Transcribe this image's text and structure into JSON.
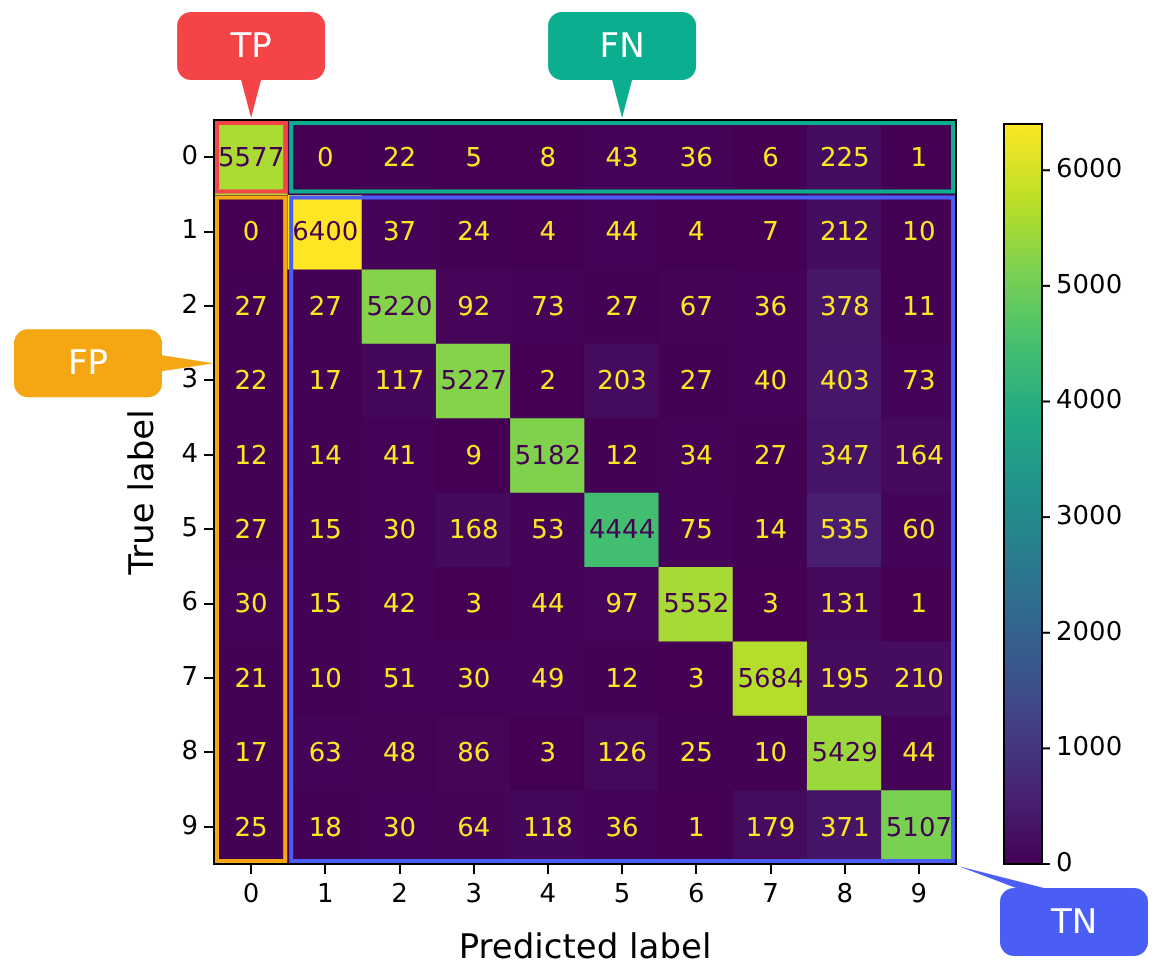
{
  "chart_data": {
    "type": "heatmap",
    "xlabel": "Predicted label",
    "ylabel": "True label",
    "categories": [
      "0",
      "1",
      "2",
      "3",
      "4",
      "5",
      "6",
      "7",
      "8",
      "9"
    ],
    "y_categories": [
      "0",
      "1",
      "2",
      "3",
      "4",
      "5",
      "6",
      "7",
      "8",
      "9"
    ],
    "cells": [
      [
        5577,
        0,
        22,
        5,
        8,
        43,
        36,
        6,
        225,
        1
      ],
      [
        0,
        6400,
        37,
        24,
        4,
        44,
        4,
        7,
        212,
        10
      ],
      [
        27,
        27,
        5220,
        92,
        73,
        27,
        67,
        36,
        378,
        11
      ],
      [
        22,
        17,
        117,
        5227,
        2,
        203,
        27,
        40,
        403,
        73
      ],
      [
        12,
        14,
        41,
        9,
        5182,
        12,
        34,
        27,
        347,
        164
      ],
      [
        27,
        15,
        30,
        168,
        53,
        4444,
        75,
        14,
        535,
        60
      ],
      [
        30,
        15,
        42,
        3,
        44,
        97,
        5552,
        3,
        131,
        1
      ],
      [
        21,
        10,
        51,
        30,
        49,
        12,
        3,
        5684,
        195,
        210
      ],
      [
        17,
        63,
        48,
        86,
        3,
        126,
        25,
        10,
        5429,
        44
      ],
      [
        25,
        18,
        30,
        64,
        118,
        36,
        1,
        179,
        371,
        5107
      ]
    ],
    "clim": [
      0,
      6400
    ],
    "cticks": [
      0,
      1000,
      2000,
      3000,
      4000,
      5000,
      6000
    ],
    "data_labels": true,
    "annotations": [
      "TP",
      "FN",
      "FP",
      "TN"
    ]
  }
}
